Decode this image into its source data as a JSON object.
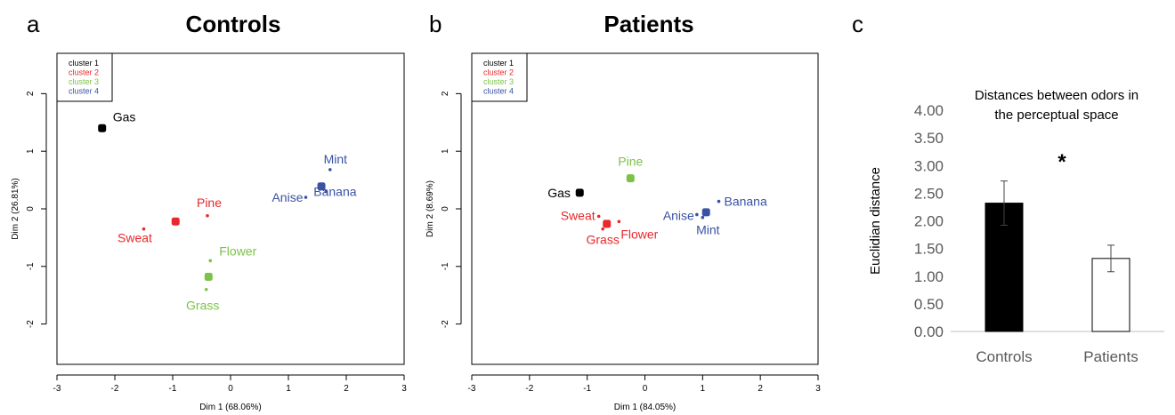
{
  "panels": {
    "a": {
      "letter": "a",
      "title": "Controls"
    },
    "b": {
      "letter": "b",
      "title": "Patients"
    },
    "c": {
      "letter": "c",
      "title_lines": [
        "Distances between odors in",
        "the perceptual space"
      ],
      "significance": "*"
    }
  },
  "colors": {
    "cluster_1": "#000000",
    "cluster_2": "#e8282b",
    "cluster_3": "#7cc24a",
    "cluster_4": "#3a52a4"
  },
  "chart_data": [
    {
      "id": "a",
      "type": "scatter",
      "title": "Controls",
      "xlabel": "Dim 1 (68.06%)",
      "ylabel": "Dim 2 (26.81%)",
      "xlim": [
        -3,
        3
      ],
      "ylim": [
        -2.7,
        2.7
      ],
      "xticks": [
        -3,
        -2,
        -1,
        0,
        1,
        2,
        3
      ],
      "yticks": [
        -2,
        -1,
        0,
        1,
        2
      ],
      "legend_position": "top-left",
      "legend": [
        {
          "label": "cluster 1",
          "color": "#000000"
        },
        {
          "label": "cluster 2",
          "color": "#e8282b"
        },
        {
          "label": "cluster 3",
          "color": "#7cc24a"
        },
        {
          "label": "cluster 4",
          "color": "#3a52a4"
        }
      ],
      "odors": [
        {
          "name": "Gas",
          "x": -2.22,
          "y": 1.4,
          "cluster": 1
        },
        {
          "name": "Sweat",
          "x": -1.5,
          "y": -0.35,
          "cluster": 2
        },
        {
          "name": "Pine",
          "x": -0.4,
          "y": -0.12,
          "cluster": 2
        },
        {
          "name": "Flower",
          "x": -0.35,
          "y": -0.9,
          "cluster": 3
        },
        {
          "name": "Grass",
          "x": -0.42,
          "y": -1.4,
          "cluster": 3
        },
        {
          "name": "Anise",
          "x": 1.3,
          "y": 0.2,
          "cluster": 4
        },
        {
          "name": "Banana",
          "x": 1.65,
          "y": 0.3,
          "cluster": 4
        },
        {
          "name": "Mint",
          "x": 1.72,
          "y": 0.68,
          "cluster": 4
        }
      ],
      "centroids": [
        {
          "cluster": 1,
          "x": -2.22,
          "y": 1.4
        },
        {
          "cluster": 2,
          "x": -0.95,
          "y": -0.22
        },
        {
          "cluster": 3,
          "x": -0.38,
          "y": -1.18
        },
        {
          "cluster": 4,
          "x": 1.57,
          "y": 0.39
        }
      ]
    },
    {
      "id": "b",
      "type": "scatter",
      "title": "Patients",
      "xlabel": "Dim 1 (84.05%)",
      "ylabel": "Dim 2 (8.69%)",
      "xlim": [
        -3,
        3
      ],
      "ylim": [
        -2.7,
        2.7
      ],
      "xticks": [
        -3,
        -2,
        -1,
        0,
        1,
        2,
        3
      ],
      "yticks": [
        -2,
        -1,
        0,
        1,
        2
      ],
      "legend_position": "top-left",
      "legend": [
        {
          "label": "cluster 1",
          "color": "#000000"
        },
        {
          "label": "cluster 2",
          "color": "#e8282b"
        },
        {
          "label": "cluster 3",
          "color": "#7cc24a"
        },
        {
          "label": "cluster 4",
          "color": "#3a52a4"
        }
      ],
      "odors": [
        {
          "name": "Gas",
          "x": -1.13,
          "y": 0.28,
          "cluster": 1
        },
        {
          "name": "Sweat",
          "x": -0.8,
          "y": -0.13,
          "cluster": 2
        },
        {
          "name": "Grass",
          "x": -0.73,
          "y": -0.35,
          "cluster": 2
        },
        {
          "name": "Flower",
          "x": -0.45,
          "y": -0.22,
          "cluster": 2
        },
        {
          "name": "Pine",
          "x": -0.25,
          "y": 0.53,
          "cluster": 3
        },
        {
          "name": "Anise",
          "x": 0.9,
          "y": -0.1,
          "cluster": 4
        },
        {
          "name": "Mint",
          "x": 1.0,
          "y": -0.15,
          "cluster": 4
        },
        {
          "name": "Banana",
          "x": 1.28,
          "y": 0.13,
          "cluster": 4
        }
      ],
      "centroids": [
        {
          "cluster": 1,
          "x": -1.13,
          "y": 0.28
        },
        {
          "cluster": 2,
          "x": -0.66,
          "y": -0.26
        },
        {
          "cluster": 3,
          "x": -0.25,
          "y": 0.53
        },
        {
          "cluster": 4,
          "x": 1.06,
          "y": -0.06
        }
      ]
    },
    {
      "id": "c",
      "type": "bar",
      "title": "Distances between odors in the perceptual space",
      "xlabel": "",
      "ylabel": "Euclidian distance",
      "categories": [
        "Controls",
        "Patients"
      ],
      "values": [
        2.32,
        1.32
      ],
      "errors": [
        0.4,
        0.24
      ],
      "bar_colors": [
        "#000000",
        "#ffffff"
      ],
      "ylim": [
        0,
        4
      ],
      "yticks": [
        "0.00",
        "0.50",
        "1.00",
        "1.50",
        "2.00",
        "2.50",
        "3.00",
        "3.50",
        "4.00"
      ],
      "annotation": "*"
    }
  ]
}
